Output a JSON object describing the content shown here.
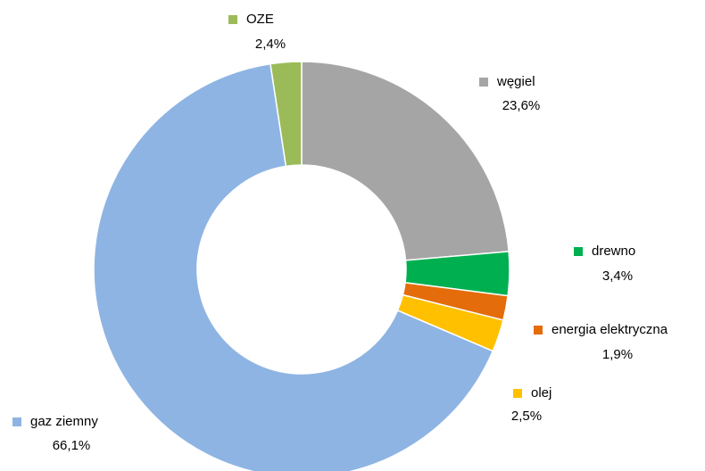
{
  "chart_data": {
    "type": "donut",
    "categories": [
      "węgiel",
      "drewno",
      "energia elektryczna",
      "olej",
      "gaz ziemny",
      "OZE"
    ],
    "values": [
      23.6,
      3.4,
      1.9,
      2.5,
      66.1,
      2.4
    ],
    "value_labels": [
      "23,6%",
      "3,4%",
      "1,9%",
      "2,5%",
      "66,1%",
      "2,4%"
    ],
    "colors": [
      "#a5a5a5",
      "#00b050",
      "#e46c0a",
      "#ffc000",
      "#8eb4e3",
      "#9bbb59"
    ]
  }
}
